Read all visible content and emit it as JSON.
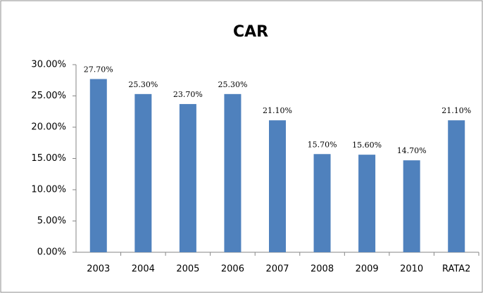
{
  "chart_data": {
    "type": "bar",
    "title": "CAR",
    "categories": [
      "2003",
      "2004",
      "2005",
      "2006",
      "2007",
      "2008",
      "2009",
      "2010",
      "RATA2"
    ],
    "values": [
      27.7,
      25.3,
      23.7,
      25.3,
      21.1,
      15.7,
      15.6,
      14.7,
      21.1
    ],
    "value_labels": [
      "27.70%",
      "25.30%",
      "23.70%",
      "25.30%",
      "21.10%",
      "15.70%",
      "15.60%",
      "14.70%",
      "21.10%"
    ],
    "color": "#4f81bd",
    "ylim": [
      0,
      30
    ],
    "yticks": [
      {
        "value": 0,
        "label": "0.00%"
      },
      {
        "value": 5,
        "label": "5.00%"
      },
      {
        "value": 10,
        "label": "10.00%"
      },
      {
        "value": 15,
        "label": "15.00%"
      },
      {
        "value": 20,
        "label": "20.00%"
      },
      {
        "value": 25,
        "label": "25.00%"
      },
      {
        "value": 30,
        "label": "30.00%"
      }
    ],
    "grid": false
  }
}
